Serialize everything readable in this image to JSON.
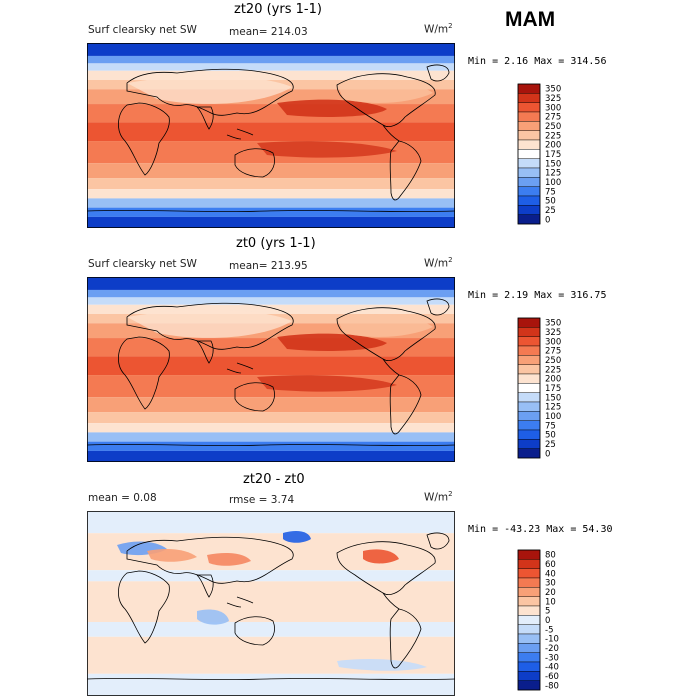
{
  "season": "MAM",
  "units_html_base": "W/m",
  "units_sup": "2",
  "panels": [
    {
      "title": "zt20 (yrs 1-1)",
      "left_label": "Surf clearsky net SW",
      "stat_label": "mean= 214.03",
      "minmax": "Min =    2.16 Max = 314.56"
    },
    {
      "title": "zt0 (yrs 1-1)",
      "left_label": "Surf clearsky net SW",
      "stat_label": "mean= 213.95",
      "minmax": "Min =    2.19 Max = 316.75"
    },
    {
      "title": "zt20 - zt0",
      "left_label": "mean =    0.08",
      "stat_label": "rmse =    3.74",
      "minmax": "Min = -43.23 Max =  54.30"
    }
  ],
  "chart_data": [
    {
      "type": "heatmap",
      "title": "zt20 (yrs 1-1)",
      "variable": "Surf clearsky net SW",
      "units": "W/m^2",
      "mean": 214.03,
      "min": 2.16,
      "max": 314.56,
      "colorbar_levels": [
        0,
        25,
        50,
        75,
        100,
        125,
        150,
        175,
        200,
        225,
        250,
        275,
        300,
        325,
        350
      ],
      "colorbar_colors": [
        "#0a1e8c",
        "#0d3dc8",
        "#1e5ee6",
        "#3c7df0",
        "#6b9ff2",
        "#98bff5",
        "#c5dcf9",
        "#ffffff",
        "#fde3d0",
        "#fbc5a3",
        "#f8a077",
        "#f47a52",
        "#ec5532",
        "#d2341a",
        "#a8140c"
      ]
    },
    {
      "type": "heatmap",
      "title": "zt0 (yrs 1-1)",
      "variable": "Surf clearsky net SW",
      "units": "W/m^2",
      "mean": 213.95,
      "min": 2.19,
      "max": 316.75,
      "colorbar_levels": [
        0,
        25,
        50,
        75,
        100,
        125,
        150,
        175,
        200,
        225,
        250,
        275,
        300,
        325,
        350
      ],
      "colorbar_colors": [
        "#0a1e8c",
        "#0d3dc8",
        "#1e5ee6",
        "#3c7df0",
        "#6b9ff2",
        "#98bff5",
        "#c5dcf9",
        "#ffffff",
        "#fde3d0",
        "#fbc5a3",
        "#f8a077",
        "#f47a52",
        "#ec5532",
        "#d2341a",
        "#a8140c"
      ]
    },
    {
      "type": "heatmap",
      "title": "zt20 - zt0",
      "units": "W/m^2",
      "mean": 0.08,
      "rmse": 3.74,
      "min": -43.23,
      "max": 54.3,
      "colorbar_levels": [
        -80,
        -60,
        -40,
        -30,
        -20,
        -10,
        -5,
        0,
        5,
        10,
        20,
        30,
        40,
        60,
        80
      ],
      "colorbar_colors": [
        "#0a1e8c",
        "#0d3dc8",
        "#1e5ee6",
        "#3c7df0",
        "#6b9ff2",
        "#98bff5",
        "#c5dcf9",
        "#e3eefb",
        "#fde3d0",
        "#fbc5a3",
        "#f8a077",
        "#f47a52",
        "#ec5532",
        "#d2341a",
        "#a8140c"
      ]
    }
  ]
}
